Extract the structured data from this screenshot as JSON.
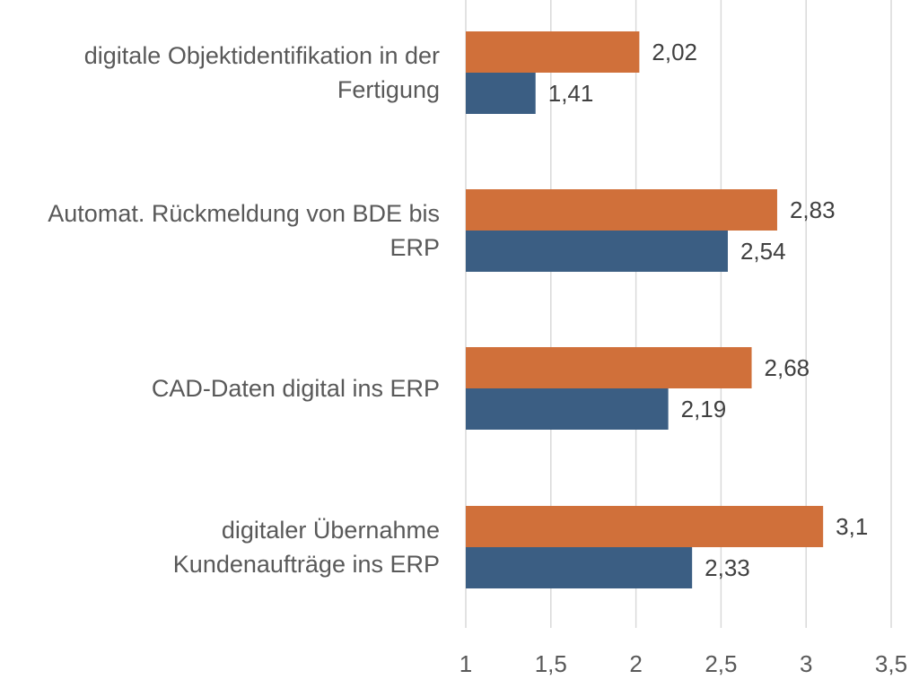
{
  "chart_data": {
    "type": "bar",
    "orientation": "horizontal",
    "categories": [
      "digitale Objektidentifikation in der Fertigung",
      "Automat. Rückmeldung von BDE bis ERP",
      "CAD-Daten digital ins ERP",
      "digitaler Übernahme Kundenaufträge ins ERP"
    ],
    "series": [
      {
        "values": [
          2.02,
          2.83,
          2.68,
          3.1
        ],
        "value_labels": [
          "2,02",
          "2,83",
          "2,68",
          "3,1"
        ],
        "color": "#D0703A"
      },
      {
        "values": [
          1.41,
          2.54,
          2.19,
          2.33
        ],
        "value_labels": [
          "1,41",
          "2,54",
          "2,19",
          "2,33"
        ],
        "color": "#3B5E83"
      }
    ],
    "xlim": [
      1,
      3.5
    ],
    "xticks": [
      1,
      1.5,
      2,
      2.5,
      3,
      3.5
    ],
    "xtick_labels": [
      "1",
      "1,5",
      "2",
      "2,5",
      "3",
      "3,5"
    ],
    "grid": true,
    "legend": "none",
    "title": "",
    "xlabel": "",
    "ylabel": ""
  },
  "labels": {
    "category_lines": [
      [
        "digitale Objektidentifikation in der",
        "Fertigung"
      ],
      [
        "Automat. Rückmeldung von BDE bis",
        "ERP"
      ],
      [
        "CAD-Daten digital ins ERP"
      ],
      [
        "digitaler Übernahme",
        "Kundenaufträge ins ERP"
      ]
    ]
  }
}
